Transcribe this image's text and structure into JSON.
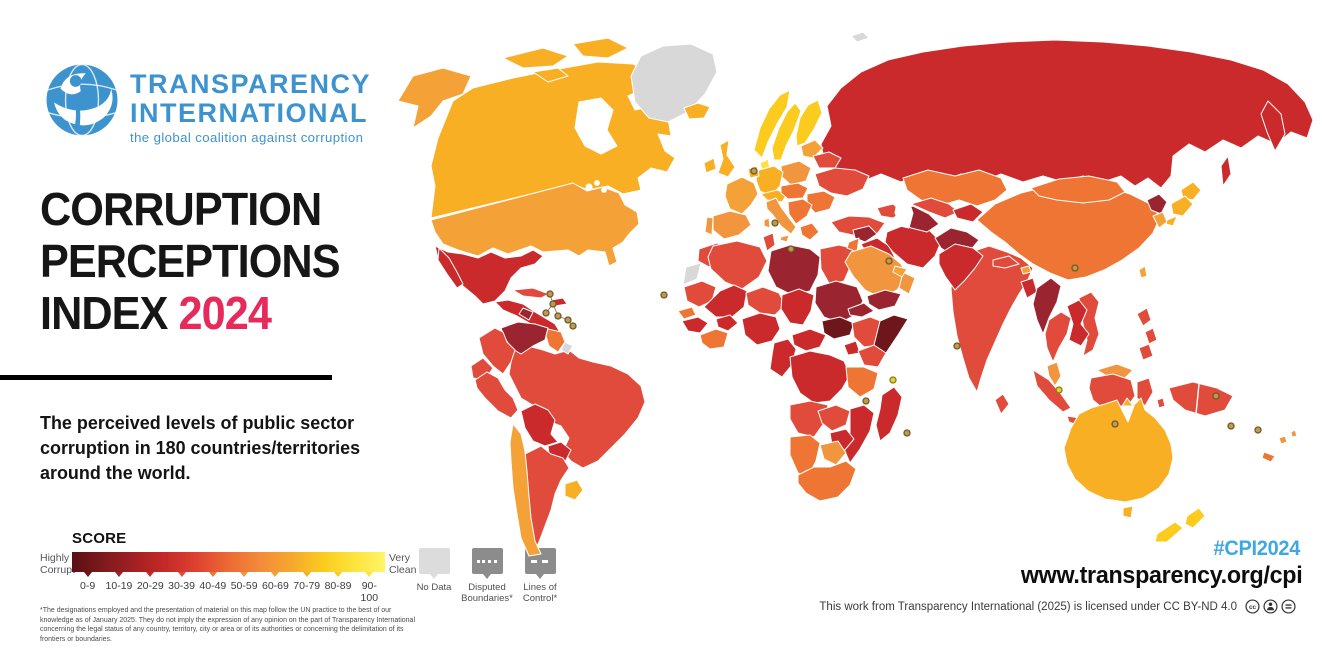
{
  "logo": {
    "line1": "TRANSPARENCY",
    "line2": "INTERNATIONAL",
    "tagline": "the global coalition against corruption",
    "color": "#3D93CE"
  },
  "title": {
    "line1": "CORRUPTION",
    "line2": "PERCEPTIONS",
    "line3_prefix": "INDEX ",
    "year": "2024",
    "year_color": "#E62A5B"
  },
  "subtitle": "The perceived levels of public sector corruption in 180 countries/territories around the world.",
  "legend": {
    "score_label": "SCORE",
    "left_label": "Highly\nCorrupt",
    "right_label": "Very\nClean",
    "ticks": [
      "0-9",
      "10-19",
      "20-29",
      "30-39",
      "40-49",
      "50-59",
      "60-69",
      "70-79",
      "80-89",
      "90-100"
    ],
    "gradient": [
      "#5A0F14",
      "#7E1A1D",
      "#A32023",
      "#C62A28",
      "#DE4231",
      "#EC6A33",
      "#F28B3A",
      "#F6A72E",
      "#FACB1E",
      "#FDE33B",
      "#FFF566"
    ],
    "no_data_label": "No Data",
    "disputed_label": "Disputed\nBoundaries*",
    "lines_label": "Lines of\nControl*"
  },
  "footnote": "*The designations employed and the presentation of material on this map follow the UN practice to the best of our knowledge as of January 2025. They do not imply the expression of any opinion on the part of Transparency International concerning the legal status of any country, territory, city or area or of its authorities or concerning the delimitation of its frontiers or boundaries.",
  "footer": {
    "hashtag": "#CPI2024",
    "hashtag_color": "#3FA8E0",
    "url": "www.transparency.org/cpi",
    "license": "This work from Transparency International (2025) is licensed under CC BY-ND 4.0"
  },
  "map": {
    "type": "choropleth-world-map",
    "score_bands": [
      "0-9",
      "10-19",
      "20-29",
      "30-39",
      "40-49",
      "50-59",
      "60-69",
      "70-79",
      "80-89",
      "90-100",
      "no-data"
    ],
    "palette": {
      "no-data": "#D8D8D8",
      "0-9": "#6D161C",
      "10-19": "#9A2530",
      "20-29": "#CA2A2B",
      "30-39": "#E14B3B",
      "40-49": "#EE7533",
      "50-59": "#F2953F",
      "60-69": "#F4A238",
      "70-79": "#F8AF24",
      "80-89": "#FBCB1E",
      "90-100": "#FFE345"
    },
    "marker": {
      "fill": "#C09A50",
      "stroke": "#6F5B26",
      "alt_fill": "#E6D02C",
      "alt_stroke": "#8A7A1A"
    },
    "regions": {
      "usa": "60-69",
      "canada": "70-79",
      "greenland": "no-data",
      "mexico": "20-29",
      "central-america": "20-29",
      "nicaragua": "10-19",
      "cuba": "30-39",
      "hispaniola": "20-29",
      "venezuela": "10-19",
      "guyana-suriname": "40-49",
      "french-guiana": "no-data",
      "colombia": "30-39",
      "ecuador": "30-39",
      "peru": "30-39",
      "brazil": "30-39",
      "bolivia": "20-29",
      "paraguay": "20-29",
      "chile": "60-69",
      "argentina": "30-39",
      "uruguay": "70-79",
      "iceland": "70-79",
      "ireland": "70-79",
      "uk": "70-79",
      "norway": "80-89",
      "sweden": "80-89",
      "finland": "80-89",
      "denmark": "90-100",
      "baltics": "60-69",
      "poland": "50-59",
      "germany": "70-79",
      "benelux": "70-79",
      "france": "60-69",
      "alpine": "70-79",
      "central-europe": "40-49",
      "balkans": "40-49",
      "romania-bulgaria": "40-49",
      "greece": "40-49",
      "italy": "50-59",
      "spain": "50-59",
      "portugal": "50-59",
      "belarus": "30-39",
      "ukraine": "30-39",
      "turkey": "30-39",
      "caucasus": "30-39",
      "russia": "20-29",
      "svalbard": "no-data",
      "kazakhstan": "40-49",
      "uzbekistan": "30-39",
      "turkmenistan": "10-19",
      "kyrgyz-tajik": "20-29",
      "afghanistan": "10-19",
      "pakistan": "20-29",
      "india": "30-39",
      "nepal": "30-39",
      "bhutan": "60-69",
      "bangladesh": "20-29",
      "sri-lanka": "30-39",
      "myanmar": "10-19",
      "china": "40-49",
      "mongolia": "40-49",
      "north-korea": "10-19",
      "south-korea": "60-69",
      "japan": "70-79",
      "taiwan": "60-69",
      "thailand": "30-39",
      "laos-cambodia": "20-29",
      "vietnam": "30-39",
      "malaysia": "50-59",
      "indonesia": "30-39",
      "new-guinea": "30-39",
      "philippines": "30-39",
      "morocco": "30-39",
      "western-sahara": "no-data",
      "algeria": "30-39",
      "tunisia": "30-39",
      "libya": "10-19",
      "egypt": "30-39",
      "mauritania": "30-39",
      "mali": "20-29",
      "niger": "30-39",
      "chad": "20-29",
      "sudan": "10-19",
      "senegal": "40-49",
      "guinea": "20-29",
      "ivory-ghana": "40-49",
      "burkina": "20-29",
      "nigeria": "20-29",
      "cameroon-congo": "20-29",
      "car": "20-29",
      "south-sudan": "0-9",
      "eritrea": "10-19",
      "ethiopia": "30-39",
      "somalia": "0-9",
      "kenya": "30-39",
      "uganda": "20-29",
      "drc": "20-29",
      "tanzania": "40-49",
      "angola": "30-39",
      "zambia": "30-39",
      "mozambique": "20-29",
      "zimbabwe": "20-29",
      "botswana": "50-59",
      "namibia": "40-49",
      "south-africa": "40-49",
      "madagascar": "20-29",
      "syria": "10-19",
      "iraq": "20-29",
      "iran": "20-29",
      "saudi-arabia": "50-59",
      "yemen": "10-19",
      "oman": "50-59",
      "uae": "60-69",
      "jordan-israel": "40-49",
      "australia": "70-79",
      "new-zealand": "80-89",
      "fiji": "50-59",
      "new-caledonia": "40-49"
    }
  }
}
